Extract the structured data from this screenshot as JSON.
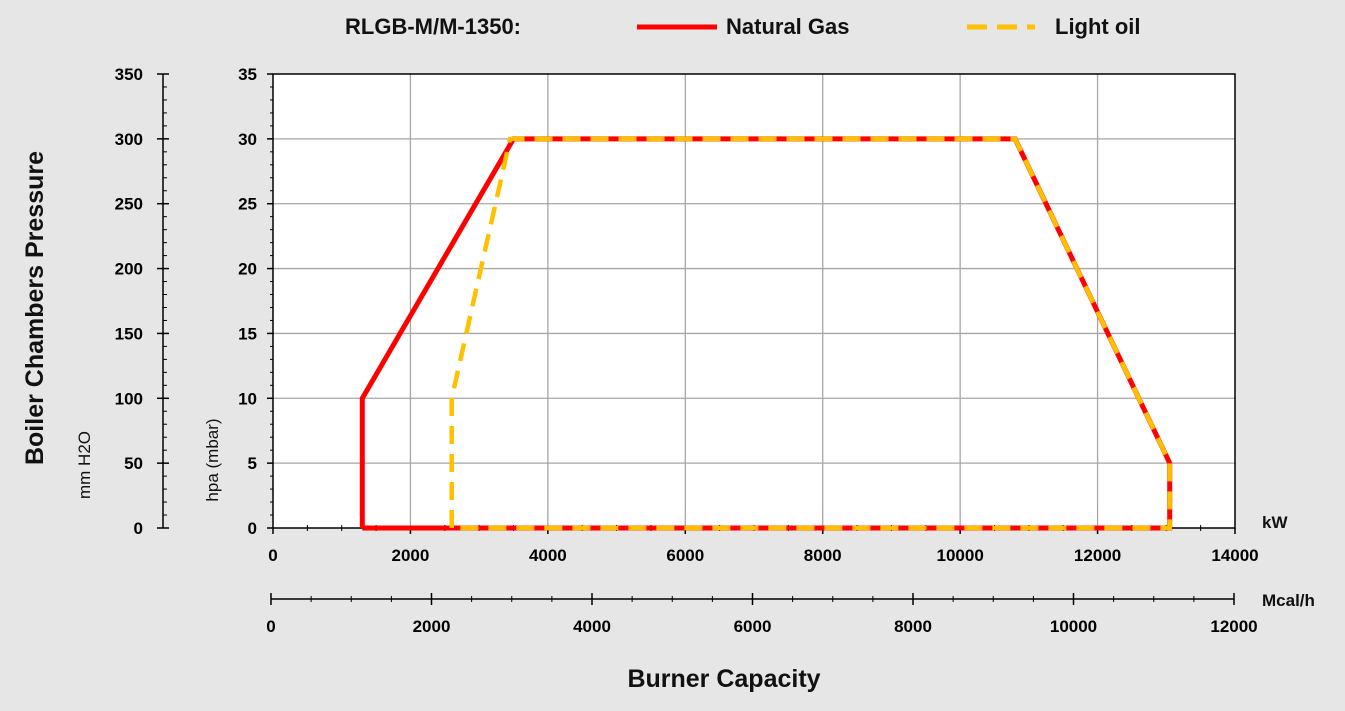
{
  "chart_data": {
    "type": "line",
    "title": "RLGB-M/M-1350:",
    "xlabel": "Burner Capacity",
    "x_unit_primary": "kW",
    "x_unit_secondary": "Mcal/h",
    "xlim": [
      0,
      14000
    ],
    "xticks": [
      0,
      2000,
      4000,
      6000,
      8000,
      10000,
      12000,
      14000
    ],
    "x2lim": [
      0,
      12000
    ],
    "x2ticks": [
      0,
      2000,
      4000,
      6000,
      8000,
      10000,
      12000
    ],
    "ylabel_outer": "Boiler Chambers Pressure",
    "y_unit_outer": "mm H2O",
    "y_outer_lim": [
      0,
      350
    ],
    "y_outer_ticks": [
      0,
      50,
      100,
      150,
      200,
      250,
      300,
      350
    ],
    "y_unit_inner": "hpa (mbar)",
    "ylim": [
      0,
      35
    ],
    "yticks": [
      0,
      5,
      10,
      15,
      20,
      25,
      30,
      35
    ],
    "grid": true,
    "legend_position": "top",
    "series": [
      {
        "name": "Natural Gas",
        "color": "#ff0000",
        "style": "solid",
        "points": [
          [
            1300,
            0
          ],
          [
            1300,
            10
          ],
          [
            3500,
            30
          ],
          [
            10800,
            30
          ],
          [
            13050,
            5
          ],
          [
            13050,
            0
          ],
          [
            1300,
            0
          ]
        ]
      },
      {
        "name": "Light oil",
        "color": "#ffc000",
        "style": "dashed",
        "points": [
          [
            2600,
            0
          ],
          [
            2600,
            10
          ],
          [
            3450,
            30
          ],
          [
            10800,
            30
          ],
          [
            13050,
            5
          ],
          [
            13050,
            0
          ],
          [
            2600,
            0
          ]
        ]
      }
    ]
  }
}
